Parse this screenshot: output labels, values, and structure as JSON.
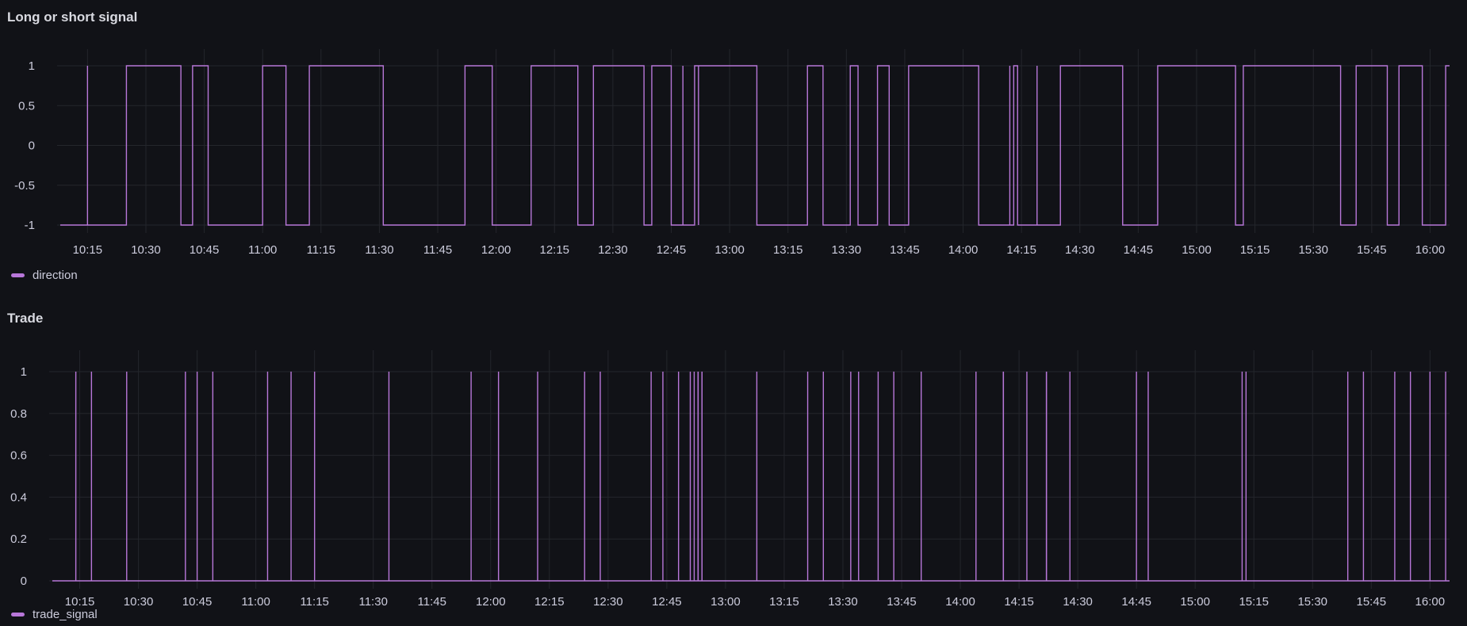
{
  "colors": {
    "background": "#111217",
    "series": "#b877d9",
    "grid": "#24262c",
    "text": "#ccccdc"
  },
  "panels": [
    {
      "title": "Long or short signal",
      "legend": "direction"
    },
    {
      "title": "Trade",
      "legend": "trade_signal"
    }
  ],
  "chart_data": [
    {
      "type": "line",
      "title": "Long or short signal",
      "xlabel": "",
      "ylabel": "",
      "x_ticks": [
        "10:15",
        "10:30",
        "10:45",
        "11:00",
        "11:15",
        "11:30",
        "11:45",
        "12:00",
        "12:15",
        "12:30",
        "12:45",
        "13:00",
        "13:15",
        "13:30",
        "13:45",
        "14:00",
        "14:15",
        "14:30",
        "14:45",
        "15:00",
        "15:15",
        "15:30",
        "15:45",
        "16:00"
      ],
      "y_ticks": [
        "1",
        "0.5",
        "0",
        "-0.5",
        "-1"
      ],
      "ylim": [
        -1,
        1
      ],
      "xlim": [
        "10:08",
        "16:05"
      ],
      "grid": true,
      "legend_position": "bottom-left",
      "series": [
        {
          "name": "direction",
          "step": "after",
          "start_value": -1,
          "transitions": [
            {
              "x": "10:15",
              "y": 1
            },
            {
              "x": "10:15",
              "y": -1
            },
            {
              "x": "10:25",
              "y": 1
            },
            {
              "x": "10:39",
              "y": -1
            },
            {
              "x": "10:42",
              "y": 1
            },
            {
              "x": "10:46",
              "y": -1
            },
            {
              "x": "11:00",
              "y": 1
            },
            {
              "x": "11:06",
              "y": -1
            },
            {
              "x": "11:12",
              "y": 1
            },
            {
              "x": "11:31",
              "y": -1
            },
            {
              "x": "11:52",
              "y": 1
            },
            {
              "x": "11:59",
              "y": -1
            },
            {
              "x": "12:09",
              "y": 1
            },
            {
              "x": "12:21",
              "y": -1
            },
            {
              "x": "12:25",
              "y": 1
            },
            {
              "x": "12:38",
              "y": -1
            },
            {
              "x": "12:40",
              "y": 1
            },
            {
              "x": "12:45",
              "y": -1
            },
            {
              "x": "12:48",
              "y": 1
            },
            {
              "x": "12:48",
              "y": -1
            },
            {
              "x": "12:51",
              "y": 1
            },
            {
              "x": "12:51",
              "y": -1
            },
            {
              "x": "12:51",
              "y": 1
            },
            {
              "x": "12:52",
              "y": -1
            },
            {
              "x": "12:52",
              "y": 1
            },
            {
              "x": "13:07",
              "y": -1
            },
            {
              "x": "13:20",
              "y": 1
            },
            {
              "x": "13:24",
              "y": -1
            },
            {
              "x": "13:31",
              "y": 1
            },
            {
              "x": "13:33",
              "y": -1
            },
            {
              "x": "13:38",
              "y": 1
            },
            {
              "x": "13:41",
              "y": -1
            },
            {
              "x": "13:46",
              "y": 1
            },
            {
              "x": "14:04",
              "y": -1
            },
            {
              "x": "14:12",
              "y": 1
            },
            {
              "x": "14:12",
              "y": -1
            },
            {
              "x": "14:13",
              "y": 1
            },
            {
              "x": "14:13",
              "y": -1
            },
            {
              "x": "14:13",
              "y": 1
            },
            {
              "x": "14:14",
              "y": -1
            },
            {
              "x": "14:19",
              "y": 1
            },
            {
              "x": "14:19",
              "y": -1
            },
            {
              "x": "14:25",
              "y": 1
            },
            {
              "x": "14:41",
              "y": -1
            },
            {
              "x": "14:50",
              "y": 1
            },
            {
              "x": "15:10",
              "y": -1
            },
            {
              "x": "15:12",
              "y": 1
            },
            {
              "x": "15:37",
              "y": -1
            },
            {
              "x": "15:41",
              "y": 1
            },
            {
              "x": "15:49",
              "y": -1
            },
            {
              "x": "15:52",
              "y": 1
            },
            {
              "x": "15:58",
              "y": -1
            },
            {
              "x": "16:04",
              "y": 1
            }
          ]
        }
      ]
    },
    {
      "type": "line",
      "title": "Trade",
      "xlabel": "",
      "ylabel": "",
      "x_ticks": [
        "10:15",
        "10:30",
        "10:45",
        "11:00",
        "11:15",
        "11:30",
        "11:45",
        "12:00",
        "12:15",
        "12:30",
        "12:45",
        "13:00",
        "13:15",
        "13:30",
        "13:45",
        "14:00",
        "14:15",
        "14:30",
        "14:45",
        "15:00",
        "15:15",
        "15:30",
        "15:45",
        "16:00"
      ],
      "y_ticks": [
        "1",
        "0.8",
        "0.6",
        "0.4",
        "0.2",
        "0"
      ],
      "ylim": [
        0,
        1
      ],
      "xlim": [
        "10:08",
        "16:05"
      ],
      "grid": true,
      "legend_position": "bottom-left",
      "series": [
        {
          "name": "trade_signal",
          "baseline": 0,
          "spikes_at": [
            "10:14",
            "10:18",
            "10:27",
            "10:42",
            "10:45",
            "10:49",
            "11:03",
            "11:09",
            "11:15",
            "11:34",
            "11:55",
            "12:02",
            "12:12",
            "12:24",
            "12:28",
            "12:41",
            "12:44",
            "12:48",
            "12:51",
            "12:52",
            "12:53",
            "12:53",
            "12:54",
            "12:54",
            "13:08",
            "13:21",
            "13:25",
            "13:32",
            "13:34",
            "13:39",
            "13:43",
            "13:50",
            "14:04",
            "14:11",
            "14:11",
            "14:17",
            "14:22",
            "14:22",
            "14:28",
            "14:45",
            "14:48",
            "15:12",
            "15:13",
            "15:39",
            "15:43",
            "15:51",
            "15:55",
            "16:00",
            "16:04"
          ]
        }
      ]
    }
  ]
}
